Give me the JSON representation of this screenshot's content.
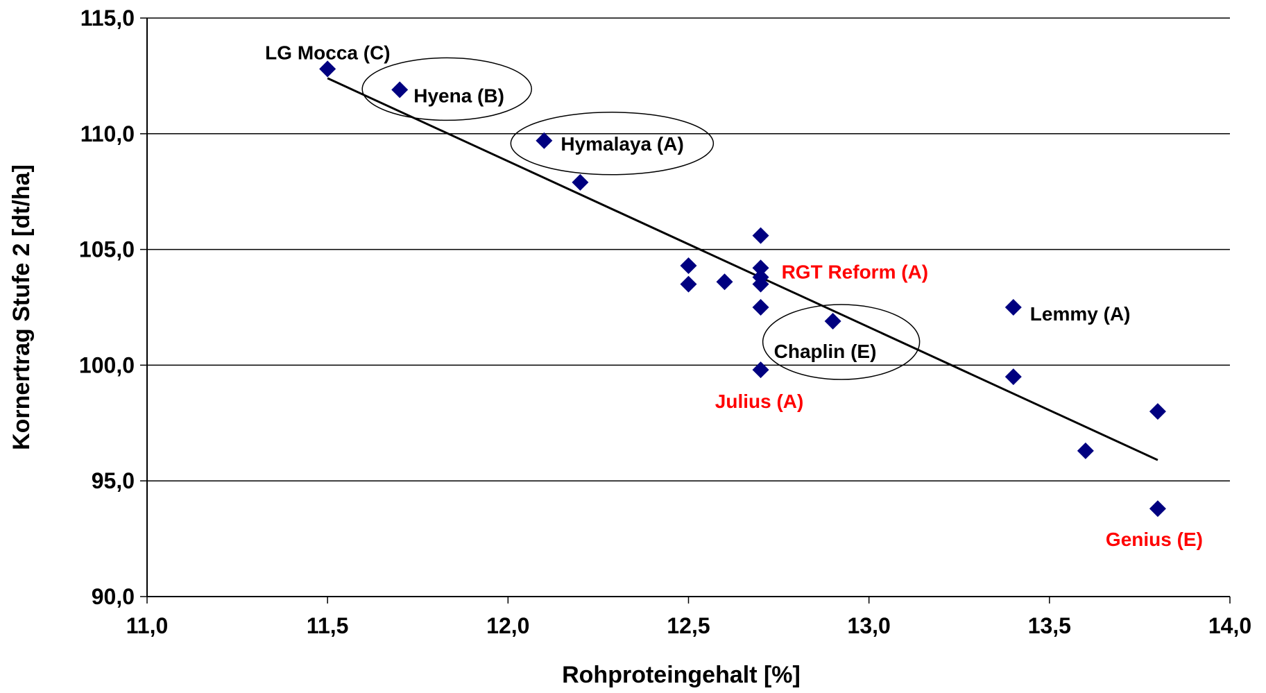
{
  "chart_data": {
    "type": "scatter",
    "title": "",
    "xlabel": "Rohproteingehalt  [%]",
    "ylabel": "Kornertrag Stufe 2 [dt/ha]",
    "xlim": [
      11.0,
      14.0
    ],
    "ylim": [
      90.0,
      115.0
    ],
    "x_ticks": [
      "11,0",
      "11,5",
      "12,0",
      "12,5",
      "13,0",
      "13,5",
      "14,0"
    ],
    "y_ticks": [
      "90,0",
      "95,0",
      "100,0",
      "105,0",
      "110,0",
      "115,0"
    ],
    "grid": "horizontal",
    "legend": "none",
    "marker_color": "#000080",
    "trendline_color": "#000000",
    "points": [
      {
        "x": 11.5,
        "y": 112.8
      },
      {
        "x": 11.7,
        "y": 111.9
      },
      {
        "x": 12.1,
        "y": 109.7
      },
      {
        "x": 12.2,
        "y": 107.9
      },
      {
        "x": 12.5,
        "y": 104.3
      },
      {
        "x": 12.5,
        "y": 103.5
      },
      {
        "x": 12.6,
        "y": 103.6
      },
      {
        "x": 12.7,
        "y": 105.6
      },
      {
        "x": 12.7,
        "y": 104.2
      },
      {
        "x": 12.7,
        "y": 103.8
      },
      {
        "x": 12.7,
        "y": 103.5
      },
      {
        "x": 12.7,
        "y": 102.5
      },
      {
        "x": 12.7,
        "y": 99.8
      },
      {
        "x": 12.9,
        "y": 101.9
      },
      {
        "x": 13.4,
        "y": 102.5
      },
      {
        "x": 13.4,
        "y": 99.5
      },
      {
        "x": 13.6,
        "y": 96.3
      },
      {
        "x": 13.8,
        "y": 98.0
      },
      {
        "x": 13.8,
        "y": 93.8
      }
    ],
    "trendline": {
      "x": [
        11.5,
        13.8
      ],
      "y": [
        112.4,
        95.9
      ]
    },
    "annotations": [
      {
        "text": "LG Mocca (C)",
        "x": 11.5,
        "y": 112.8,
        "color": "#000000",
        "circled": false
      },
      {
        "text": "Hyena (B)",
        "x": 11.7,
        "y": 111.9,
        "color": "#000000",
        "circled": true
      },
      {
        "text": "Hymalaya (A)",
        "x": 12.1,
        "y": 109.7,
        "color": "#000000",
        "circled": true
      },
      {
        "text": "RGT Reform (A)",
        "x": 12.7,
        "y": 104.2,
        "color": "#ff0000",
        "circled": false
      },
      {
        "text": "Lemmy (A)",
        "x": 13.4,
        "y": 102.5,
        "color": "#000000",
        "circled": false
      },
      {
        "text": "Chaplin (E)",
        "x": 12.9,
        "y": 101.9,
        "color": "#000000",
        "circled": true
      },
      {
        "text": "Julius (A)",
        "x": 12.7,
        "y": 99.8,
        "color": "#ff0000",
        "circled": false
      },
      {
        "text": "Genius (E)",
        "x": 13.8,
        "y": 93.8,
        "color": "#ff0000",
        "circled": false
      }
    ]
  }
}
